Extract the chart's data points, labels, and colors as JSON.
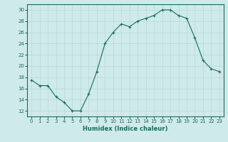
{
  "x": [
    0,
    1,
    2,
    3,
    4,
    5,
    6,
    7,
    8,
    9,
    10,
    11,
    12,
    13,
    14,
    15,
    16,
    17,
    18,
    19,
    20,
    21,
    22,
    23
  ],
  "y": [
    17.5,
    16.5,
    16.5,
    14.5,
    13.5,
    12.0,
    12.0,
    15.0,
    19.0,
    24.0,
    26.0,
    27.5,
    27.0,
    28.0,
    28.5,
    29.0,
    30.0,
    30.0,
    29.0,
    28.5,
    25.0,
    21.0,
    19.5,
    19.0
  ],
  "xlabel": "Humidex (Indice chaleur)",
  "ylim": [
    11,
    31
  ],
  "xlim": [
    -0.5,
    23.5
  ],
  "yticks": [
    12,
    14,
    16,
    18,
    20,
    22,
    24,
    26,
    28,
    30
  ],
  "xticks": [
    0,
    1,
    2,
    3,
    4,
    5,
    6,
    7,
    8,
    9,
    10,
    11,
    12,
    13,
    14,
    15,
    16,
    17,
    18,
    19,
    20,
    21,
    22,
    23
  ],
  "line_color": "#1a6b5a",
  "marker": "+",
  "bg_color": "#ceeaea",
  "grid_color": "#b8d8d8"
}
